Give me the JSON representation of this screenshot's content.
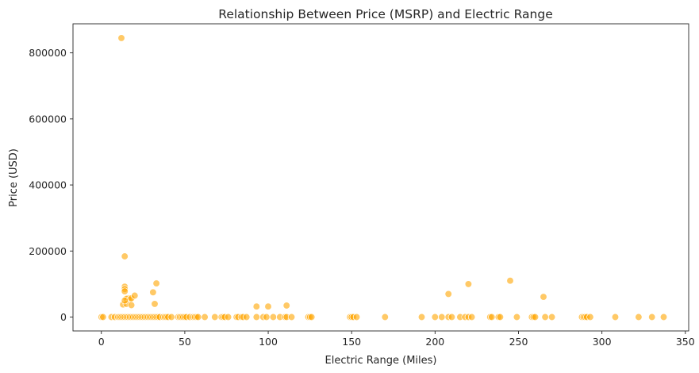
{
  "chart_data": {
    "type": "scatter",
    "title": "Relationship Between Price (MSRP) and Electric Range",
    "xlabel": "Electric Range (Miles)",
    "ylabel": "Price (USD)",
    "xlim": [
      -17,
      352
    ],
    "ylim": [
      -42000,
      888000
    ],
    "xticks": [
      0,
      50,
      100,
      150,
      200,
      250,
      300,
      350
    ],
    "yticks": [
      0,
      200000,
      400000,
      600000,
      800000
    ],
    "grid": false,
    "legend": "none",
    "point_color": "#FFA500",
    "series": [
      {
        "points": [
          [
            12,
            845000
          ],
          [
            14,
            184000
          ],
          [
            14,
            92000
          ],
          [
            14,
            85000
          ],
          [
            14,
            78000
          ],
          [
            16,
            57000
          ],
          [
            15,
            55000
          ],
          [
            17,
            53000
          ],
          [
            18,
            57000
          ],
          [
            20,
            65000
          ],
          [
            13,
            38000
          ],
          [
            15,
            40000
          ],
          [
            18,
            36000
          ],
          [
            14,
            50000
          ],
          [
            31,
            75000
          ],
          [
            32,
            40000
          ],
          [
            33,
            102000
          ],
          [
            93,
            32000
          ],
          [
            100,
            32000
          ],
          [
            111,
            35000
          ],
          [
            208,
            70000
          ],
          [
            220,
            100000
          ],
          [
            245,
            110000
          ],
          [
            265,
            61000
          ],
          [
            0,
            0
          ],
          [
            1,
            0
          ],
          [
            6,
            0
          ],
          [
            8,
            0
          ],
          [
            10,
            0
          ],
          [
            11,
            0
          ],
          [
            12,
            0
          ],
          [
            13,
            0
          ],
          [
            14,
            0
          ],
          [
            15,
            0
          ],
          [
            16,
            0
          ],
          [
            17,
            0
          ],
          [
            18,
            0
          ],
          [
            19,
            0
          ],
          [
            20,
            0
          ],
          [
            21,
            0
          ],
          [
            22,
            0
          ],
          [
            23,
            0
          ],
          [
            24,
            0
          ],
          [
            25,
            0
          ],
          [
            26,
            0
          ],
          [
            27,
            0
          ],
          [
            28,
            0
          ],
          [
            29,
            0
          ],
          [
            30,
            0
          ],
          [
            31,
            0
          ],
          [
            32,
            0
          ],
          [
            33,
            0
          ],
          [
            34,
            0
          ],
          [
            35,
            0
          ],
          [
            37,
            0
          ],
          [
            38,
            0
          ],
          [
            39,
            0
          ],
          [
            40,
            0
          ],
          [
            42,
            0
          ],
          [
            46,
            0
          ],
          [
            47,
            0
          ],
          [
            48,
            0
          ],
          [
            49,
            0
          ],
          [
            50,
            0
          ],
          [
            51,
            0
          ],
          [
            53,
            0
          ],
          [
            55,
            0
          ],
          [
            56,
            0
          ],
          [
            57,
            0
          ],
          [
            58,
            0
          ],
          [
            62,
            0
          ],
          [
            68,
            0
          ],
          [
            72,
            0
          ],
          [
            73,
            0
          ],
          [
            74,
            0
          ],
          [
            76,
            0
          ],
          [
            81,
            0
          ],
          [
            82,
            0
          ],
          [
            84,
            0
          ],
          [
            85,
            0
          ],
          [
            87,
            0
          ],
          [
            93,
            0
          ],
          [
            97,
            0
          ],
          [
            99,
            0
          ],
          [
            103,
            0
          ],
          [
            107,
            0
          ],
          [
            110,
            0
          ],
          [
            111,
            0
          ],
          [
            114,
            0
          ],
          [
            124,
            0
          ],
          [
            125,
            0
          ],
          [
            126,
            0
          ],
          [
            149,
            0
          ],
          [
            150,
            0
          ],
          [
            151,
            0
          ],
          [
            153,
            0
          ],
          [
            170,
            0
          ],
          [
            192,
            0
          ],
          [
            200,
            0
          ],
          [
            204,
            0
          ],
          [
            208,
            0
          ],
          [
            210,
            0
          ],
          [
            215,
            0
          ],
          [
            218,
            0
          ],
          [
            220,
            0
          ],
          [
            222,
            0
          ],
          [
            233,
            0
          ],
          [
            234,
            0
          ],
          [
            238,
            0
          ],
          [
            239,
            0
          ],
          [
            249,
            0
          ],
          [
            258,
            0
          ],
          [
            259,
            0
          ],
          [
            260,
            0
          ],
          [
            266,
            0
          ],
          [
            270,
            0
          ],
          [
            288,
            0
          ],
          [
            289,
            0
          ],
          [
            290,
            0
          ],
          [
            291,
            0
          ],
          [
            293,
            0
          ],
          [
            308,
            0
          ],
          [
            322,
            0
          ],
          [
            330,
            0
          ],
          [
            337,
            0
          ]
        ]
      }
    ]
  }
}
